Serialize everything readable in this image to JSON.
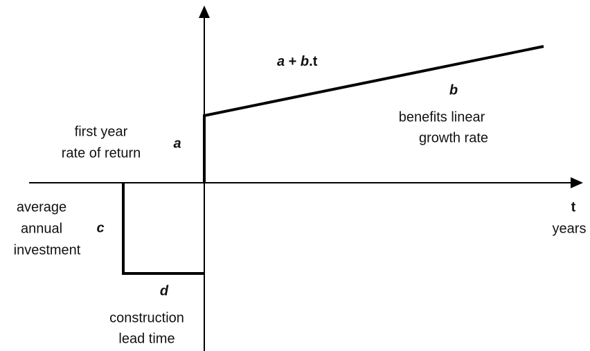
{
  "formula": {
    "parts": [
      "a",
      " + ",
      "b",
      ".t"
    ]
  },
  "slope_label": "b",
  "slope_description": [
    "benefits linear",
    "growth rate"
  ],
  "intercept_description": [
    "first year",
    "rate of return"
  ],
  "intercept_label": "a",
  "investment_description": [
    "average",
    "annual",
    "investment"
  ],
  "investment_label": "c",
  "time_axis": {
    "label": "t",
    "unit": "years"
  },
  "lead_time_label": "d",
  "lead_time_description": [
    "construction",
    "lead time"
  ]
}
